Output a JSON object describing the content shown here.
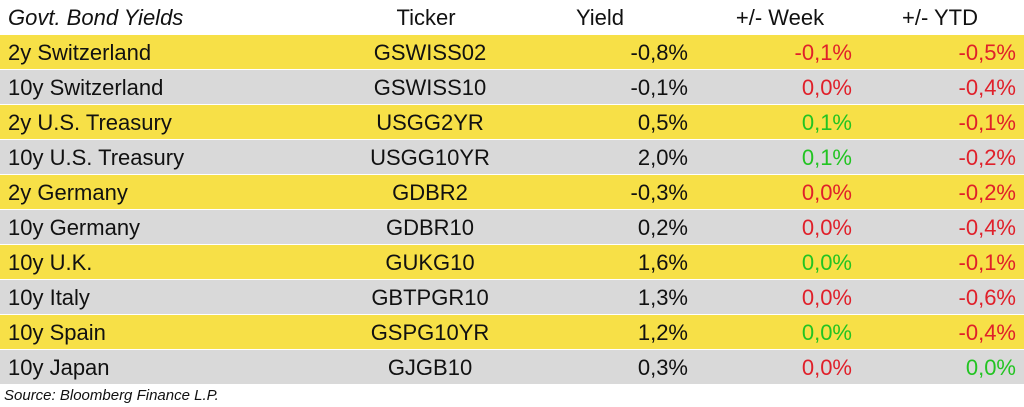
{
  "header": {
    "name": "Govt. Bond Yields",
    "ticker": "Ticker",
    "yield": "Yield",
    "week": "+/- Week",
    "ytd": "+/- YTD"
  },
  "rows": [
    {
      "name": "2y Switzerland",
      "ticker": "GSWISS02",
      "yield": "-0,8%",
      "week": "-0,1%",
      "ytd": "-0,5%",
      "week_color": "#e0202a",
      "ytd_color": "#e0202a"
    },
    {
      "name": "10y Switzerland",
      "ticker": "GSWISS10",
      "yield": "-0,1%",
      "week": "0,0%",
      "ytd": "-0,4%",
      "week_color": "#e0202a",
      "ytd_color": "#e0202a"
    },
    {
      "name": "2y U.S. Treasury",
      "ticker": "USGG2YR",
      "yield": "0,5%",
      "week": "0,1%",
      "ytd": "-0,1%",
      "week_color": "#22c422",
      "ytd_color": "#e0202a"
    },
    {
      "name": "10y U.S. Treasury",
      "ticker": "USGG10YR",
      "yield": "2,0%",
      "week": "0,1%",
      "ytd": "-0,2%",
      "week_color": "#22c422",
      "ytd_color": "#e0202a"
    },
    {
      "name": "2y Germany",
      "ticker": "GDBR2",
      "yield": "-0,3%",
      "week": "0,0%",
      "ytd": "-0,2%",
      "week_color": "#e0202a",
      "ytd_color": "#e0202a"
    },
    {
      "name": "10y Germany",
      "ticker": "GDBR10",
      "yield": "0,2%",
      "week": "0,0%",
      "ytd": "-0,4%",
      "week_color": "#e0202a",
      "ytd_color": "#e0202a"
    },
    {
      "name": "10y U.K.",
      "ticker": "GUKG10",
      "yield": "1,6%",
      "week": "0,0%",
      "ytd": "-0,1%",
      "week_color": "#22c422",
      "ytd_color": "#e0202a"
    },
    {
      "name": "10y Italy",
      "ticker": "GBTPGR10",
      "yield": "1,3%",
      "week": "0,0%",
      "ytd": "-0,6%",
      "week_color": "#e0202a",
      "ytd_color": "#e0202a"
    },
    {
      "name": "10y Spain",
      "ticker": "GSPG10YR",
      "yield": "1,2%",
      "week": "0,0%",
      "ytd": "-0,4%",
      "week_color": "#22c422",
      "ytd_color": "#e0202a"
    },
    {
      "name": "10y Japan",
      "ticker": "GJGB10",
      "yield": "0,3%",
      "week": "0,0%",
      "ytd": "0,0%",
      "week_color": "#e0202a",
      "ytd_color": "#22c422"
    }
  ],
  "row_colors": [
    "#f7e047",
    "#d9d9d9"
  ],
  "source": "Source: Bloomberg Finance L.P."
}
